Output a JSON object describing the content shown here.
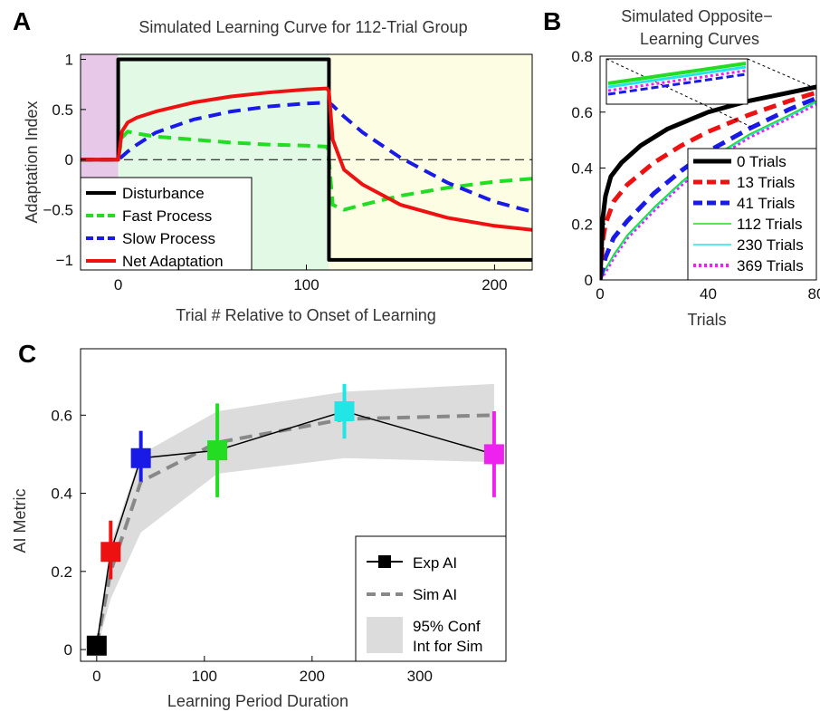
{
  "colors": {
    "disturbance": "#000000",
    "fast": "#22dd22",
    "slow": "#1a1ae6",
    "net": "#ee1111",
    "baseline_bg": "#e8c8e8",
    "learning_bg": "#e2f9e6",
    "opposite_bg": "#fdfde3",
    "conf_band": "#dcdcdc",
    "sim_line": "#888888",
    "trials_0": "#000000",
    "trials_13": "#ee1111",
    "trials_41": "#1a1ae6",
    "trials_112": "#22dd22",
    "trials_230": "#22e6e6",
    "trials_369": "#ee22ee"
  },
  "chart_data": [
    {
      "panel": "A",
      "type": "line",
      "title": "Simulated Learning Curve for 112-Trial Group",
      "xlabel": "Trial # Relative to Onset of Learning",
      "ylabel": "Adaptation Index",
      "xlim": [
        -20,
        220
      ],
      "ylim": [
        -1.1,
        1.05
      ],
      "xticks": [
        0,
        100,
        200
      ],
      "yticks": [
        1,
        0.5,
        0,
        -0.5,
        -1
      ],
      "ytick_labels": [
        "1",
        "0.5",
        "0",
        "−0.5",
        "−1"
      ],
      "regions": [
        {
          "name": "baseline",
          "x": [
            -20,
            0
          ]
        },
        {
          "name": "learning",
          "x": [
            0,
            112
          ]
        },
        {
          "name": "opposite",
          "x": [
            112,
            220
          ]
        }
      ],
      "zero_line": true,
      "legend_position": "lower-left",
      "series": [
        {
          "name": "Disturbance",
          "color_key": "disturbance",
          "style": "solid",
          "x": [
            -20,
            0,
            0,
            112,
            112,
            220
          ],
          "y": [
            0,
            0,
            1,
            1,
            -1,
            -1
          ]
        },
        {
          "name": "Fast Process",
          "color_key": "fast",
          "style": "dashed",
          "x": [
            -20,
            0,
            2,
            5,
            10,
            20,
            40,
            60,
            80,
            100,
            111,
            112,
            114,
            120,
            130,
            150,
            175,
            200,
            220
          ],
          "y": [
            0,
            0,
            0.22,
            0.28,
            0.26,
            0.23,
            0.2,
            0.17,
            0.15,
            0.14,
            0.13,
            0.0,
            -0.45,
            -0.5,
            -0.45,
            -0.36,
            -0.28,
            -0.22,
            -0.19
          ]
        },
        {
          "name": "Slow Process",
          "color_key": "slow",
          "style": "dashed",
          "x": [
            -20,
            0,
            2,
            5,
            10,
            20,
            40,
            60,
            80,
            100,
            112,
            114,
            120,
            130,
            150,
            175,
            200,
            220
          ],
          "y": [
            0,
            0,
            0.03,
            0.08,
            0.15,
            0.27,
            0.4,
            0.48,
            0.53,
            0.56,
            0.57,
            0.54,
            0.43,
            0.27,
            0.02,
            -0.23,
            -0.42,
            -0.52
          ]
        },
        {
          "name": "Net Adaptation",
          "color_key": "net",
          "style": "solid",
          "x": [
            -20,
            0,
            2,
            5,
            10,
            20,
            40,
            60,
            80,
            100,
            111,
            112,
            114,
            120,
            130,
            150,
            175,
            200,
            220
          ],
          "y": [
            0,
            0,
            0.28,
            0.37,
            0.42,
            0.48,
            0.57,
            0.63,
            0.67,
            0.7,
            0.71,
            0.68,
            0.2,
            -0.1,
            -0.25,
            -0.45,
            -0.58,
            -0.66,
            -0.7
          ]
        }
      ]
    },
    {
      "panel": "B",
      "type": "line",
      "title": [
        "Simulated Opposite−",
        "Learning Curves"
      ],
      "xlabel": "Trials",
      "ylabel": "",
      "xlim": [
        0,
        80
      ],
      "ylim": [
        0,
        0.8
      ],
      "xticks": [
        0,
        40,
        80
      ],
      "yticks": [
        0,
        0.2,
        0.4,
        0.6,
        0.8
      ],
      "legend_position": "lower-right",
      "inset": true,
      "series": [
        {
          "name": "0 Trials",
          "color_key": "trials_0",
          "style": "solid",
          "x": [
            0,
            1,
            2,
            4,
            8,
            15,
            25,
            40,
            55,
            70,
            80
          ],
          "y": [
            0,
            0.22,
            0.3,
            0.37,
            0.42,
            0.48,
            0.54,
            0.6,
            0.64,
            0.67,
            0.69
          ]
        },
        {
          "name": "13 Trials",
          "color_key": "trials_13",
          "style": "dashed",
          "x": [
            0,
            1,
            2,
            5,
            10,
            20,
            30,
            40,
            55,
            70,
            80
          ],
          "y": [
            0,
            0.14,
            0.2,
            0.28,
            0.34,
            0.42,
            0.48,
            0.53,
            0.59,
            0.64,
            0.67
          ]
        },
        {
          "name": "41 Trials",
          "color_key": "trials_41",
          "style": "dashed",
          "x": [
            0,
            2,
            5,
            10,
            20,
            30,
            40,
            55,
            70,
            80
          ],
          "y": [
            0,
            0.08,
            0.15,
            0.21,
            0.31,
            0.39,
            0.46,
            0.54,
            0.61,
            0.65
          ]
        },
        {
          "name": "112 Trials",
          "color_key": "trials_112",
          "style": "solid",
          "x": [
            0,
            2,
            5,
            10,
            20,
            30,
            40,
            55,
            70,
            80
          ],
          "y": [
            0,
            0.04,
            0.09,
            0.16,
            0.26,
            0.35,
            0.43,
            0.52,
            0.59,
            0.64
          ]
        },
        {
          "name": "230 Trials",
          "color_key": "trials_230",
          "style": "solid",
          "x": [
            0,
            2,
            5,
            10,
            20,
            30,
            40,
            55,
            70,
            80
          ],
          "y": [
            0,
            0.035,
            0.085,
            0.155,
            0.255,
            0.345,
            0.425,
            0.515,
            0.585,
            0.635
          ]
        },
        {
          "name": "369 Trials",
          "color_key": "trials_369",
          "style": "dotted",
          "x": [
            0,
            2,
            5,
            10,
            20,
            30,
            40,
            55,
            70,
            80
          ],
          "y": [
            0,
            0.03,
            0.08,
            0.15,
            0.25,
            0.34,
            0.42,
            0.51,
            0.58,
            0.63
          ]
        }
      ]
    },
    {
      "panel": "C",
      "type": "line",
      "title": "",
      "xlabel": "Learning Period Duration",
      "ylabel": "AI Metric",
      "xlim": [
        -15,
        380
      ],
      "ylim": [
        -0.03,
        0.77
      ],
      "xticks": [
        0,
        100,
        200,
        300
      ],
      "yticks": [
        0,
        0.2,
        0.4,
        0.6
      ],
      "legend_position": "lower-right",
      "exp_ai": {
        "name": "Exp AI",
        "x": [
          0,
          13,
          41,
          112,
          230,
          369
        ],
        "y": [
          0.01,
          0.25,
          0.49,
          0.51,
          0.61,
          0.5
        ],
        "err_low": [
          0.0,
          0.18,
          0.43,
          0.39,
          0.54,
          0.39
        ],
        "err_high": [
          0.03,
          0.33,
          0.56,
          0.63,
          0.68,
          0.61
        ],
        "color_keys": [
          "trials_0",
          "trials_13",
          "trials_41",
          "trials_112",
          "trials_230",
          "trials_369"
        ]
      },
      "sim_ai": {
        "name": "Sim AI",
        "x": [
          0,
          13,
          41,
          112,
          230,
          369
        ],
        "y": [
          0.01,
          0.2,
          0.43,
          0.53,
          0.59,
          0.6
        ]
      },
      "conf_band": {
        "name": [
          "95% Conf",
          "Int for Sim"
        ],
        "x": [
          0,
          13,
          41,
          112,
          230,
          369
        ],
        "lower": [
          0.0,
          0.13,
          0.3,
          0.45,
          0.49,
          0.48
        ],
        "upper": [
          0.03,
          0.27,
          0.5,
          0.61,
          0.66,
          0.68
        ]
      }
    }
  ],
  "panel_labels": [
    "A",
    "B",
    "C"
  ]
}
